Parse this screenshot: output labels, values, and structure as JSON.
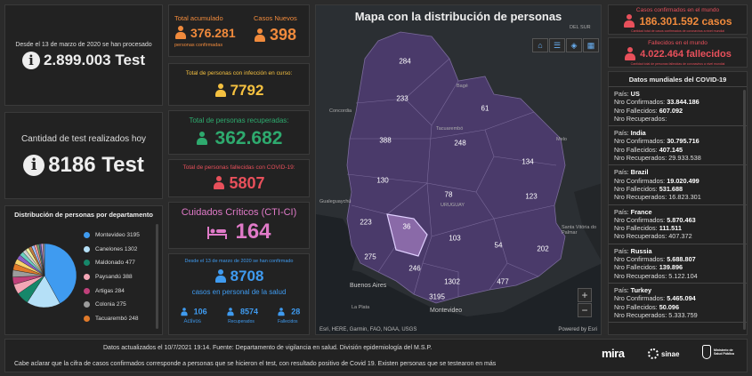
{
  "tests_total": {
    "caption": "Desde el 13 de marzo de 2020 se han procesado",
    "value": "2.899.003 Test"
  },
  "tests_today": {
    "caption": "Cantidad de test realizados hoy",
    "value": "8186 Test"
  },
  "total_acumulado": {
    "label": "Total acumulado",
    "value": "376.281",
    "sub": "personas confirmadas"
  },
  "casos_nuevos": {
    "label": "Casos Nuevos",
    "value": "398"
  },
  "en_curso": {
    "label": "Total de personas con infección en curso:",
    "value": "7792"
  },
  "recuperados": {
    "label": "Total de personas recuperadas:",
    "value": "362.682"
  },
  "fallecidos": {
    "label": "Total de personas fallecidas con COVID-19:",
    "value": "5807"
  },
  "cti": {
    "label": "Cuidados Críticos (CTI-CI)",
    "value": "164"
  },
  "salud": {
    "caption": "Desde el 13 de marzo de 2020 se han confirmado",
    "value": "8708",
    "sub": "casos en personal de la salud",
    "activos_value": "106",
    "activos_label": "Activos",
    "recuperados_value": "8574",
    "recuperados_label": "Recuperados",
    "fallecidos_value": "28",
    "fallecidos_label": "Fallecidos"
  },
  "departamentos": {
    "title": "Distribución de personas por departamento",
    "items": [
      {
        "name": "Montevideo",
        "value": "3195",
        "color": "#3f9bf0"
      },
      {
        "name": "Canelones",
        "value": "1302",
        "color": "#b5e0f7"
      },
      {
        "name": "Maldonado",
        "value": "477",
        "color": "#16876a"
      },
      {
        "name": "Paysandú",
        "value": "388",
        "color": "#f3a6b5"
      },
      {
        "name": "Artigas",
        "value": "284",
        "color": "#c0407a"
      },
      {
        "name": "Colonia",
        "value": "275",
        "color": "#9c9c9c"
      },
      {
        "name": "Tacuarembó",
        "value": "248",
        "color": "#e07a2a"
      }
    ]
  },
  "map": {
    "title": "Mapa con la distribución de personas",
    "attribution": "Esri, HERE, Garmin, FAO, NOAA, USGS",
    "powered": "Powered by Esri",
    "zoom_in": "+",
    "zoom_out": "−",
    "numbers": [
      "284",
      "233",
      "61",
      "388",
      "248",
      "134",
      "130",
      "78",
      "123",
      "223",
      "36",
      "275",
      "103",
      "54",
      "202",
      "246",
      "1302",
      "477",
      "3195"
    ],
    "labels": [
      "DEL SUR",
      "Bagé",
      "Concordia",
      "Tacuarembó",
      "Melo",
      "Gualeguaychú",
      "URUGUAY",
      "Santa Vitória do Palmar",
      "Buenos Aires",
      "La Plata",
      "Montevideo"
    ]
  },
  "mundo_confirmados": {
    "label": "Casos confirmados en el mundo",
    "value": "186.301.592 casos",
    "sub": "Cantidad total de casos confirmados de coronavirus a nivel mundial"
  },
  "mundo_fallecidos": {
    "label": "Fallecidos en el mundo",
    "value": "4.022.464 fallecidos",
    "sub": "Cantidad total de personas fallecidas de coronavirus a nivel mundial"
  },
  "mundiales": {
    "title": "Datos mundiales del COVID-19",
    "pais_label": "País:",
    "confirmados_label": "Nro Confirmados:",
    "fallecidos_label": "Nro Fallecidos:",
    "recuperados_label": "Nro Recuperados:",
    "countries": [
      {
        "name": "US",
        "confirmados": "33.844.186",
        "fallecidos": "607.092",
        "recuperados": ""
      },
      {
        "name": "India",
        "confirmados": "30.795.716",
        "fallecidos": "407.145",
        "recuperados": "29.933.538"
      },
      {
        "name": "Brazil",
        "confirmados": "19.020.499",
        "fallecidos": "531.688",
        "recuperados": "16.823.301"
      },
      {
        "name": "France",
        "confirmados": "5.870.463",
        "fallecidos": "111.511",
        "recuperados": "407.372"
      },
      {
        "name": "Russia",
        "confirmados": "5.688.807",
        "fallecidos": "139.896",
        "recuperados": "5.122.104"
      },
      {
        "name": "Turkey",
        "confirmados": "5.465.094",
        "fallecidos": "50.096",
        "recuperados": "5.333.759"
      }
    ]
  },
  "footer": {
    "line1": "Datos actualizados el 10/7/2021 19:14. Fuente: Departamento de vigilancia en salud. División epidemiología del M.S.P.",
    "line2": "Cabe aclarar que la cifra de casos confirmados corresponde a personas que se hicieron el test, con resultado positivo de Covid 19. Existen personas que se testearon en más",
    "logo_mira": "mira",
    "logo_sinae": "sinae",
    "logo_msp": "Ministerio de Salud Pública"
  },
  "colors": {
    "orange": "#f08a3c",
    "yellow": "#f5c140",
    "green": "#2eaa6e",
    "red": "#e8505b",
    "pink": "#e07ac8",
    "blue": "#3f9bf0",
    "map_fill": "#4a3a6a"
  }
}
